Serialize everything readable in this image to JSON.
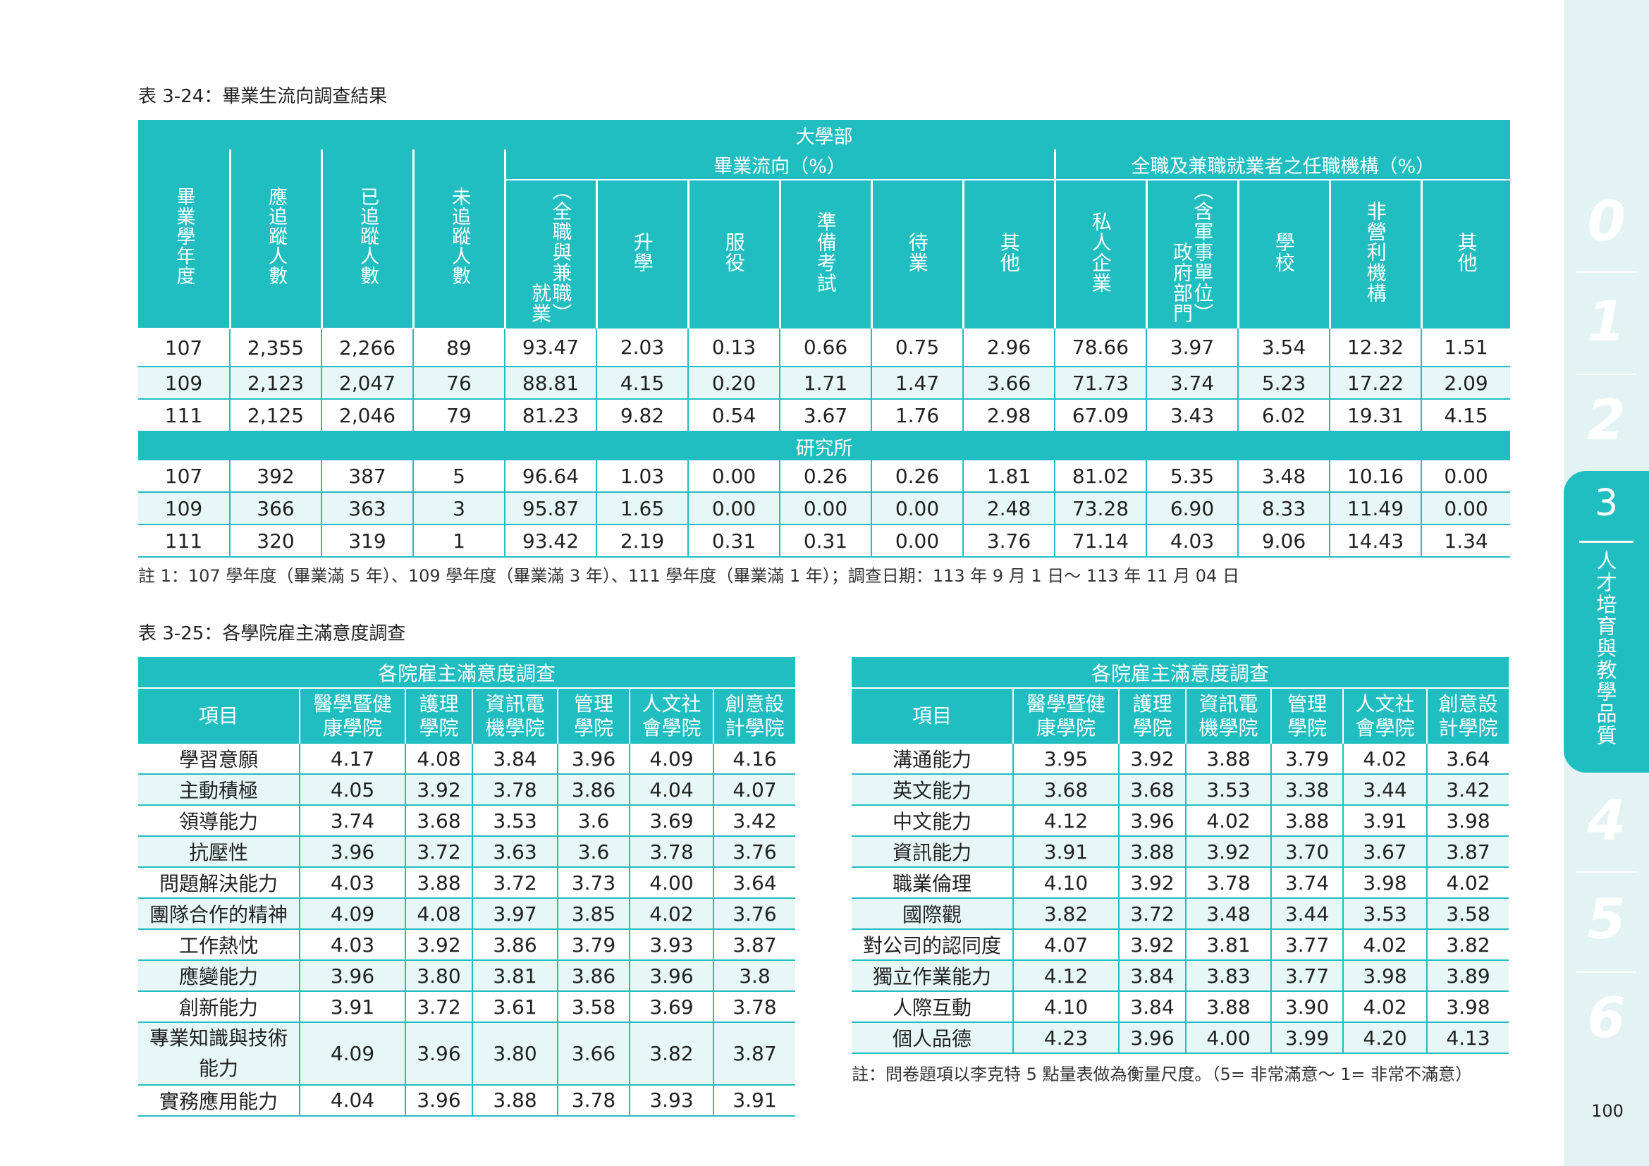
{
  "t24": {
    "caption": "表 3-24：畢業生流向調查結果",
    "band": "大學部",
    "group_flow": "畢業流向（%）",
    "group_org": "全職及兼職就業者之任職機構（%）",
    "headers": {
      "h0": "畢業學年度",
      "h1": "應追蹤人數",
      "h2": "已追蹤人數",
      "h3": "未追蹤人數",
      "h4": "就業",
      "h4s": "（全職與兼職）",
      "h5": "升學",
      "h6": "服役",
      "h7": "準備考試",
      "h8": "待業",
      "h9": "其他",
      "h10": "私人企業",
      "h11": "政府部門",
      "h11s": "（含軍事單位）",
      "h12": "學校",
      "h13": "非營利機構",
      "h14": "其他"
    },
    "undergrad": [
      [
        "107",
        "2,355",
        "2,266",
        "89",
        "93.47",
        "2.03",
        "0.13",
        "0.66",
        "0.75",
        "2.96",
        "78.66",
        "3.97",
        "3.54",
        "12.32",
        "1.51"
      ],
      [
        "109",
        "2,123",
        "2,047",
        "76",
        "88.81",
        "4.15",
        "0.20",
        "1.71",
        "1.47",
        "3.66",
        "71.73",
        "3.74",
        "5.23",
        "17.22",
        "2.09"
      ],
      [
        "111",
        "2,125",
        "2,046",
        "79",
        "81.23",
        "9.82",
        "0.54",
        "3.67",
        "1.76",
        "2.98",
        "67.09",
        "3.43",
        "6.02",
        "19.31",
        "4.15"
      ]
    ],
    "grad_band": "研究所",
    "grad": [
      [
        "107",
        "392",
        "387",
        "5",
        "96.64",
        "1.03",
        "0.00",
        "0.26",
        "0.26",
        "1.81",
        "81.02",
        "5.35",
        "3.48",
        "10.16",
        "0.00"
      ],
      [
        "109",
        "366",
        "363",
        "3",
        "95.87",
        "1.65",
        "0.00",
        "0.00",
        "0.00",
        "2.48",
        "73.28",
        "6.90",
        "8.33",
        "11.49",
        "0.00"
      ],
      [
        "111",
        "320",
        "319",
        "1",
        "93.42",
        "2.19",
        "0.31",
        "0.31",
        "0.00",
        "3.76",
        "71.14",
        "4.03",
        "9.06",
        "14.43",
        "1.34"
      ]
    ],
    "note": "註 1：107 學年度（畢業滿 5 年）、109 學年度（畢業滿 3 年）、111 學年度（畢業滿 1 年）；調查日期：113 年 9 月 1 日～ 113 年 11 月 04 日"
  },
  "t25": {
    "caption": "表 3-25：各學院雇主滿意度調查",
    "band": "各院雇主滿意度調查",
    "headers": {
      "item": "項目",
      "c1a": "醫學暨健",
      "c1b": "康學院",
      "c2a": "護理",
      "c2b": "學院",
      "c3a": "資訊電",
      "c3b": "機學院",
      "c4a": "管理",
      "c4b": "學院",
      "c5a": "人文社",
      "c5b": "會學院",
      "c6a": "創意設",
      "c6b": "計學院"
    },
    "left": [
      [
        "學習意願",
        "4.17",
        "4.08",
        "3.84",
        "3.96",
        "4.09",
        "4.16"
      ],
      [
        "主動積極",
        "4.05",
        "3.92",
        "3.78",
        "3.86",
        "4.04",
        "4.07"
      ],
      [
        "領導能力",
        "3.74",
        "3.68",
        "3.53",
        "3.6",
        "3.69",
        "3.42"
      ],
      [
        "抗壓性",
        "3.96",
        "3.72",
        "3.63",
        "3.6",
        "3.78",
        "3.76"
      ],
      [
        "問題解決能力",
        "4.03",
        "3.88",
        "3.72",
        "3.73",
        "4.00",
        "3.64"
      ],
      [
        "團隊合作的精神",
        "4.09",
        "4.08",
        "3.97",
        "3.85",
        "4.02",
        "3.76"
      ],
      [
        "工作熱忱",
        "4.03",
        "3.92",
        "3.86",
        "3.79",
        "3.93",
        "3.87"
      ],
      [
        "應變能力",
        "3.96",
        "3.80",
        "3.81",
        "3.86",
        "3.96",
        "3.8"
      ],
      [
        "創新能力",
        "3.91",
        "3.72",
        "3.61",
        "3.58",
        "3.69",
        "3.78"
      ],
      [
        "專業知識與技術",
        "4.09",
        "3.96",
        "3.80",
        "3.66",
        "3.82",
        "3.87"
      ],
      [
        "實務應用能力",
        "4.04",
        "3.96",
        "3.88",
        "3.78",
        "3.93",
        "3.91"
      ]
    ],
    "left_row10_line2": "能力",
    "right": [
      [
        "溝通能力",
        "3.95",
        "3.92",
        "3.88",
        "3.79",
        "4.02",
        "3.64"
      ],
      [
        "英文能力",
        "3.68",
        "3.68",
        "3.53",
        "3.38",
        "3.44",
        "3.42"
      ],
      [
        "中文能力",
        "4.12",
        "3.96",
        "4.02",
        "3.88",
        "3.91",
        "3.98"
      ],
      [
        "資訊能力",
        "3.91",
        "3.88",
        "3.92",
        "3.70",
        "3.67",
        "3.87"
      ],
      [
        "職業倫理",
        "4.10",
        "3.92",
        "3.78",
        "3.74",
        "3.98",
        "4.02"
      ],
      [
        "國際觀",
        "3.82",
        "3.72",
        "3.48",
        "3.44",
        "3.53",
        "3.58"
      ],
      [
        "對公司的認同度",
        "4.07",
        "3.92",
        "3.81",
        "3.77",
        "4.02",
        "3.82"
      ],
      [
        "獨立作業能力",
        "4.12",
        "3.84",
        "3.83",
        "3.77",
        "3.98",
        "3.89"
      ],
      [
        "人際互動",
        "4.10",
        "3.84",
        "3.88",
        "3.90",
        "4.02",
        "3.98"
      ],
      [
        "個人品德",
        "4.23",
        "3.96",
        "4.00",
        "3.99",
        "4.20",
        "4.13"
      ]
    ],
    "note": "註：問卷題項以李克特 5 點量表做為衡量尺度。（5= 非常滿意～ 1= 非常不滿意）"
  },
  "sidebar": {
    "tabs": [
      "0",
      "1",
      "2",
      "4",
      "5",
      "6"
    ],
    "active_num": "3",
    "active_label": "人才培育與教學品質"
  },
  "page_number": "100",
  "colors": {
    "accent": "#21bec1",
    "stripe": "#e7f6f6",
    "sidebar": "#e3f2f2"
  }
}
